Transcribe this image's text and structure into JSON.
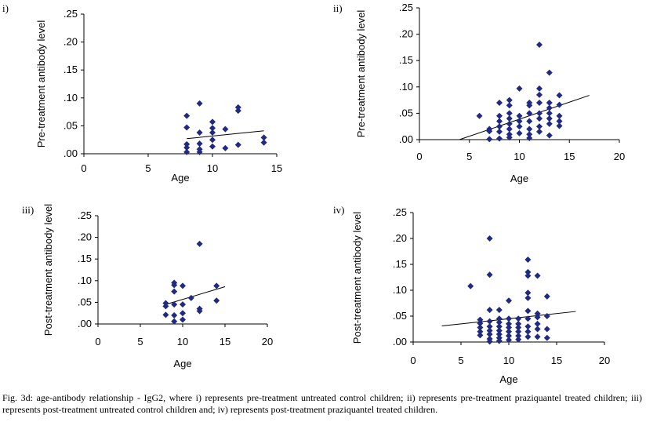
{
  "caption": "Fig. 3d: age-antibody relationship - IgG2, where i) represents pre-treatment untreated control children; ii) represents pre-treatment praziquantel treated children; iii) represents post-treatment untreated control children and; iv) represents post-treatment praziquantel treated children.",
  "colors": {
    "marker": "#1f2a80",
    "line": "#000000"
  },
  "chart_data": [
    {
      "type": "scatter",
      "panel_label": "i)",
      "xlabel": "Age",
      "ylabel": "Pre-treatment antibody level",
      "xlim": [
        0,
        15
      ],
      "ylim": [
        0,
        0.25
      ],
      "xticks": [
        "0",
        "5",
        "10",
        "15"
      ],
      "yticks": [
        ".00",
        ".05",
        ".10",
        ".15",
        ".20",
        ".25"
      ],
      "trendline": {
        "x": [
          8,
          14
        ],
        "y": [
          0.027,
          0.041
        ]
      },
      "points": [
        [
          8,
          0.068
        ],
        [
          8,
          0.047
        ],
        [
          8,
          0.017
        ],
        [
          8,
          0.011
        ],
        [
          8,
          0.003
        ],
        [
          9,
          0.09
        ],
        [
          9,
          0.038
        ],
        [
          9,
          0.018
        ],
        [
          9,
          0.008
        ],
        [
          9,
          0.003
        ],
        [
          10,
          0.057
        ],
        [
          10,
          0.046
        ],
        [
          10,
          0.038
        ],
        [
          10,
          0.025
        ],
        [
          10,
          0.013
        ],
        [
          11,
          0.044
        ],
        [
          11,
          0.01
        ],
        [
          12,
          0.083
        ],
        [
          12,
          0.077
        ],
        [
          12,
          0.016
        ],
        [
          14,
          0.029
        ],
        [
          14,
          0.02
        ]
      ]
    },
    {
      "type": "scatter",
      "panel_label": "ii)",
      "xlabel": "Age",
      "ylabel": "Pre-treatment antibody level",
      "xlim": [
        0,
        20
      ],
      "ylim": [
        0,
        0.25
      ],
      "xticks": [
        "0",
        "5",
        "10",
        "15",
        "20"
      ],
      "yticks": [
        ".00",
        ".05",
        ".10",
        ".15",
        ".20",
        ".25"
      ],
      "trendline": {
        "x": [
          4,
          17
        ],
        "y": [
          0.0,
          0.084
        ]
      },
      "points": [
        [
          6,
          0.045
        ],
        [
          7,
          0.02
        ],
        [
          7,
          0.016
        ],
        [
          7,
          0.001
        ],
        [
          8,
          0.07
        ],
        [
          8,
          0.045
        ],
        [
          8,
          0.035
        ],
        [
          8,
          0.025
        ],
        [
          8,
          0.015
        ],
        [
          8,
          0.002
        ],
        [
          9,
          0.075
        ],
        [
          9,
          0.065
        ],
        [
          9,
          0.05
        ],
        [
          9,
          0.04
        ],
        [
          9,
          0.03
        ],
        [
          9,
          0.02
        ],
        [
          9,
          0.01
        ],
        [
          9,
          0.004
        ],
        [
          10,
          0.097
        ],
        [
          10,
          0.045
        ],
        [
          10,
          0.035
        ],
        [
          10,
          0.025
        ],
        [
          10,
          0.012
        ],
        [
          11,
          0.07
        ],
        [
          11,
          0.065
        ],
        [
          11,
          0.05
        ],
        [
          11,
          0.035
        ],
        [
          11,
          0.02
        ],
        [
          11,
          0.01
        ],
        [
          11,
          0.003
        ],
        [
          12,
          0.18
        ],
        [
          12,
          0.097
        ],
        [
          12,
          0.085
        ],
        [
          12,
          0.07
        ],
        [
          12,
          0.05
        ],
        [
          12,
          0.04
        ],
        [
          12,
          0.025
        ],
        [
          12,
          0.015
        ],
        [
          13,
          0.127
        ],
        [
          13,
          0.07
        ],
        [
          13,
          0.06
        ],
        [
          13,
          0.05
        ],
        [
          13,
          0.04
        ],
        [
          13,
          0.03
        ],
        [
          13,
          0.008
        ],
        [
          14,
          0.084
        ],
        [
          14,
          0.066
        ],
        [
          14,
          0.045
        ],
        [
          14,
          0.035
        ],
        [
          14,
          0.026
        ]
      ]
    },
    {
      "type": "scatter",
      "panel_label": "iii)",
      "xlabel": "Age",
      "ylabel": "Post-treatment antibody level",
      "xlim": [
        0,
        20
      ],
      "ylim": [
        0,
        0.25
      ],
      "xticks": [
        "0",
        "5",
        "10",
        "15",
        "20"
      ],
      "yticks": [
        ".00",
        ".05",
        ".10",
        ".15",
        ".20",
        ".25"
      ],
      "trendline": {
        "x": [
          8,
          15
        ],
        "y": [
          0.045,
          0.086
        ]
      },
      "points": [
        [
          8,
          0.048
        ],
        [
          8,
          0.041
        ],
        [
          8,
          0.021
        ],
        [
          9,
          0.095
        ],
        [
          9,
          0.09
        ],
        [
          9,
          0.075
        ],
        [
          9,
          0.045
        ],
        [
          9,
          0.02
        ],
        [
          9,
          0.006
        ],
        [
          10,
          0.088
        ],
        [
          10,
          0.045
        ],
        [
          10,
          0.025
        ],
        [
          10,
          0.01
        ],
        [
          11,
          0.06
        ],
        [
          12,
          0.185
        ],
        [
          12,
          0.035
        ],
        [
          12,
          0.03
        ],
        [
          14,
          0.088
        ],
        [
          14,
          0.054
        ]
      ]
    },
    {
      "type": "scatter",
      "panel_label": "iv)",
      "xlabel": "Age",
      "ylabel": "Post-treatment antibody level",
      "xlim": [
        0,
        20
      ],
      "ylim": [
        0,
        0.25
      ],
      "xticks": [
        "0",
        "5",
        "10",
        "15",
        "20"
      ],
      "yticks": [
        ".00",
        ".05",
        ".10",
        ".15",
        ".20",
        ".25"
      ],
      "trendline": {
        "x": [
          3,
          17
        ],
        "y": [
          0.031,
          0.059
        ]
      },
      "points": [
        [
          6,
          0.108
        ],
        [
          7,
          0.043
        ],
        [
          7,
          0.036
        ],
        [
          7,
          0.028
        ],
        [
          7,
          0.02
        ],
        [
          7,
          0.013
        ],
        [
          8,
          0.2
        ],
        [
          8,
          0.13
        ],
        [
          8,
          0.062
        ],
        [
          8,
          0.04
        ],
        [
          8,
          0.03
        ],
        [
          8,
          0.022
        ],
        [
          8,
          0.015
        ],
        [
          8,
          0.006
        ],
        [
          8,
          0.001
        ],
        [
          9,
          0.062
        ],
        [
          9,
          0.045
        ],
        [
          9,
          0.038
        ],
        [
          9,
          0.03
        ],
        [
          9,
          0.022
        ],
        [
          9,
          0.015
        ],
        [
          9,
          0.008
        ],
        [
          9,
          0.002
        ],
        [
          10,
          0.08
        ],
        [
          10,
          0.045
        ],
        [
          10,
          0.035
        ],
        [
          10,
          0.028
        ],
        [
          10,
          0.02
        ],
        [
          10,
          0.012
        ],
        [
          10,
          0.004
        ],
        [
          11,
          0.045
        ],
        [
          11,
          0.035
        ],
        [
          11,
          0.028
        ],
        [
          11,
          0.02
        ],
        [
          11,
          0.012
        ],
        [
          11,
          0.005
        ],
        [
          12,
          0.159
        ],
        [
          12,
          0.135
        ],
        [
          12,
          0.128
        ],
        [
          12,
          0.095
        ],
        [
          12,
          0.085
        ],
        [
          12,
          0.06
        ],
        [
          12,
          0.045
        ],
        [
          12,
          0.03
        ],
        [
          12,
          0.02
        ],
        [
          12,
          0.01
        ],
        [
          13,
          0.128
        ],
        [
          13,
          0.055
        ],
        [
          13,
          0.048
        ],
        [
          13,
          0.035
        ],
        [
          13,
          0.025
        ],
        [
          13,
          0.01
        ],
        [
          14,
          0.088
        ],
        [
          14,
          0.05
        ],
        [
          14,
          0.025
        ],
        [
          14,
          0.008
        ]
      ]
    }
  ]
}
